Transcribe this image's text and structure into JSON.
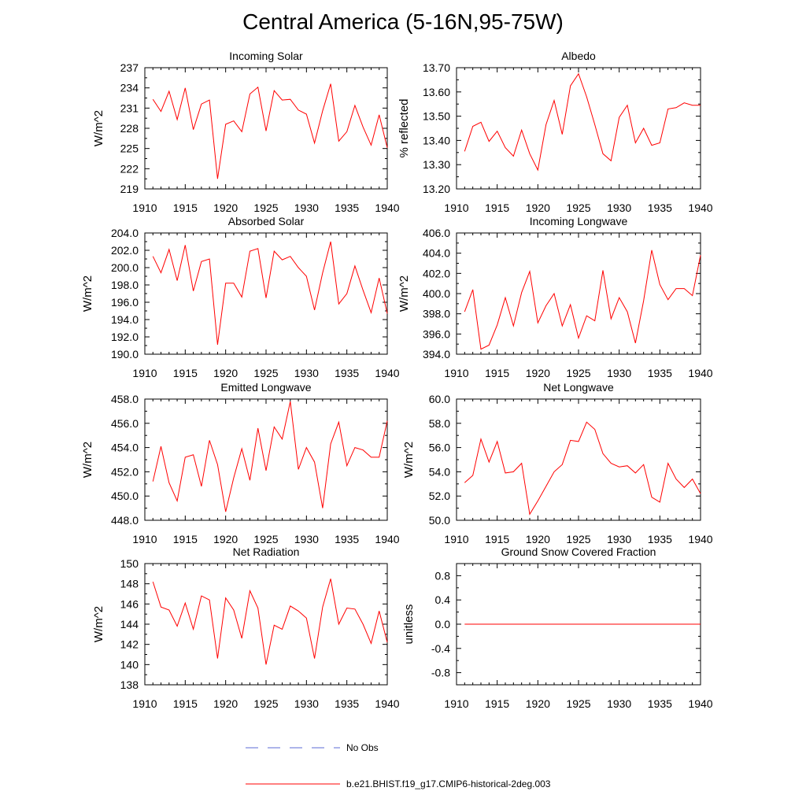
{
  "title": "Central America (5-16N,95-75W)",
  "colors": {
    "model": "#ff0000",
    "obs": "#5b6bd6",
    "axis": "#000000"
  },
  "legend": {
    "obs_label": "No Obs",
    "model_label": "b.e21.BHIST.f19_g17.CMIP6-historical-2deg.003"
  },
  "chart_data": [
    {
      "type": "line",
      "title": "Incoming Solar",
      "ylabel": "W/m^2",
      "x_ticks": [
        "1910",
        "1915",
        "1920",
        "1925",
        "1930",
        "1935",
        "1940"
      ],
      "xlim": [
        1910,
        1940
      ],
      "ylim": [
        219,
        237
      ],
      "y_ticks": [
        "219",
        "222",
        "225",
        "228",
        "231",
        "234",
        "237"
      ],
      "series": [
        {
          "values": [
            [
              1911,
              232.3
            ],
            [
              1912,
              230.5
            ],
            [
              1913,
              233.5
            ],
            [
              1914,
              229.3
            ],
            [
              1915,
              234.0
            ],
            [
              1916,
              227.8
            ],
            [
              1917,
              231.6
            ],
            [
              1918,
              232.2
            ],
            [
              1919,
              220.5
            ],
            [
              1920,
              228.6
            ],
            [
              1921,
              229.1
            ],
            [
              1922,
              227.5
            ],
            [
              1923,
              233.1
            ],
            [
              1924,
              234.1
            ],
            [
              1925,
              227.6
            ],
            [
              1926,
              233.6
            ],
            [
              1927,
              232.2
            ],
            [
              1928,
              232.3
            ],
            [
              1929,
              230.7
            ],
            [
              1930,
              230.1
            ],
            [
              1931,
              225.8
            ],
            [
              1932,
              230.6
            ],
            [
              1933,
              234.6
            ],
            [
              1934,
              226.1
            ],
            [
              1935,
              227.5
            ],
            [
              1936,
              231.4
            ],
            [
              1937,
              228.2
            ],
            [
              1938,
              225.5
            ],
            [
              1939,
              230.0
            ],
            [
              1940,
              225.1
            ]
          ]
        }
      ]
    },
    {
      "type": "line",
      "title": "Albedo",
      "ylabel": "% reflected",
      "x_ticks": [
        "1910",
        "1915",
        "1920",
        "1925",
        "1930",
        "1935",
        "1940"
      ],
      "xlim": [
        1910,
        1940
      ],
      "ylim": [
        13.2,
        13.7
      ],
      "y_ticks": [
        "13.20",
        "13.30",
        "13.40",
        "13.50",
        "13.60",
        "13.70"
      ],
      "series": [
        {
          "values": [
            [
              1911,
              13.355
            ],
            [
              1912,
              13.458
            ],
            [
              1913,
              13.475
            ],
            [
              1914,
              13.396
            ],
            [
              1915,
              13.438
            ],
            [
              1916,
              13.37
            ],
            [
              1917,
              13.335
            ],
            [
              1918,
              13.443
            ],
            [
              1919,
              13.345
            ],
            [
              1920,
              13.278
            ],
            [
              1921,
              13.465
            ],
            [
              1922,
              13.565
            ],
            [
              1923,
              13.425
            ],
            [
              1924,
              13.625
            ],
            [
              1925,
              13.675
            ],
            [
              1926,
              13.58
            ],
            [
              1927,
              13.465
            ],
            [
              1928,
              13.345
            ],
            [
              1929,
              13.316
            ],
            [
              1930,
              13.495
            ],
            [
              1931,
              13.545
            ],
            [
              1932,
              13.39
            ],
            [
              1933,
              13.45
            ],
            [
              1934,
              13.38
            ],
            [
              1935,
              13.39
            ],
            [
              1936,
              13.53
            ],
            [
              1937,
              13.535
            ],
            [
              1938,
              13.555
            ],
            [
              1939,
              13.545
            ],
            [
              1940,
              13.545
            ]
          ]
        }
      ]
    },
    {
      "type": "line",
      "title": "Absorbed Solar",
      "ylabel": "W/m^2",
      "x_ticks": [
        "1910",
        "1915",
        "1920",
        "1925",
        "1930",
        "1935",
        "1940"
      ],
      "xlim": [
        1910,
        1940
      ],
      "ylim": [
        190,
        204
      ],
      "y_ticks": [
        "190.0",
        "192.0",
        "194.0",
        "196.0",
        "198.0",
        "200.0",
        "202.0",
        "204.0"
      ],
      "series": [
        {
          "values": [
            [
              1911,
              201.3
            ],
            [
              1912,
              199.4
            ],
            [
              1913,
              202.1
            ],
            [
              1914,
              198.5
            ],
            [
              1915,
              202.6
            ],
            [
              1916,
              197.3
            ],
            [
              1917,
              200.7
            ],
            [
              1918,
              201.0
            ],
            [
              1919,
              191.1
            ],
            [
              1920,
              198.2
            ],
            [
              1921,
              198.2
            ],
            [
              1922,
              196.6
            ],
            [
              1923,
              201.9
            ],
            [
              1924,
              202.2
            ],
            [
              1925,
              196.5
            ],
            [
              1926,
              201.9
            ],
            [
              1927,
              200.9
            ],
            [
              1928,
              201.3
            ],
            [
              1929,
              200.0
            ],
            [
              1930,
              199.0
            ],
            [
              1931,
              195.1
            ],
            [
              1932,
              199.4
            ],
            [
              1933,
              203.0
            ],
            [
              1934,
              195.8
            ],
            [
              1935,
              197.0
            ],
            [
              1936,
              200.2
            ],
            [
              1937,
              197.4
            ],
            [
              1938,
              194.8
            ],
            [
              1939,
              198.8
            ],
            [
              1940,
              194.7
            ]
          ]
        }
      ]
    },
    {
      "type": "line",
      "title": "Incoming Longwave",
      "ylabel": "W/m^2",
      "x_ticks": [
        "1910",
        "1915",
        "1920",
        "1925",
        "1930",
        "1935",
        "1940"
      ],
      "xlim": [
        1910,
        1940
      ],
      "ylim": [
        394,
        406
      ],
      "y_ticks": [
        "394.0",
        "396.0",
        "398.0",
        "400.0",
        "402.0",
        "404.0",
        "406.0"
      ],
      "series": [
        {
          "values": [
            [
              1911,
              398.2
            ],
            [
              1912,
              400.4
            ],
            [
              1913,
              394.5
            ],
            [
              1914,
              394.9
            ],
            [
              1915,
              396.9
            ],
            [
              1916,
              399.6
            ],
            [
              1917,
              396.8
            ],
            [
              1918,
              400.1
            ],
            [
              1919,
              402.2
            ],
            [
              1920,
              397.1
            ],
            [
              1921,
              398.8
            ],
            [
              1922,
              400.0
            ],
            [
              1923,
              396.8
            ],
            [
              1924,
              398.9
            ],
            [
              1925,
              395.6
            ],
            [
              1926,
              397.8
            ],
            [
              1927,
              397.3
            ],
            [
              1928,
              402.3
            ],
            [
              1929,
              397.5
            ],
            [
              1930,
              399.6
            ],
            [
              1931,
              398.2
            ],
            [
              1932,
              395.1
            ],
            [
              1933,
              399.3
            ],
            [
              1934,
              404.3
            ],
            [
              1935,
              400.9
            ],
            [
              1936,
              399.4
            ],
            [
              1937,
              400.5
            ],
            [
              1938,
              400.5
            ],
            [
              1939,
              399.8
            ],
            [
              1940,
              403.8
            ]
          ]
        }
      ]
    },
    {
      "type": "line",
      "title": "Emitted Longwave",
      "ylabel": "W/m^2",
      "x_ticks": [
        "1910",
        "1915",
        "1920",
        "1925",
        "1930",
        "1935",
        "1940"
      ],
      "xlim": [
        1910,
        1940
      ],
      "ylim": [
        448,
        458
      ],
      "y_ticks": [
        "448.0",
        "450.0",
        "452.0",
        "454.0",
        "456.0",
        "458.0"
      ],
      "series": [
        {
          "values": [
            [
              1911,
              451.2
            ],
            [
              1912,
              454.1
            ],
            [
              1913,
              451.1
            ],
            [
              1914,
              449.6
            ],
            [
              1915,
              453.2
            ],
            [
              1916,
              453.4
            ],
            [
              1917,
              450.8
            ],
            [
              1918,
              454.6
            ],
            [
              1919,
              452.6
            ],
            [
              1920,
              448.7
            ],
            [
              1921,
              451.5
            ],
            [
              1922,
              453.9
            ],
            [
              1923,
              451.3
            ],
            [
              1924,
              455.6
            ],
            [
              1925,
              452.1
            ],
            [
              1926,
              455.7
            ],
            [
              1927,
              454.7
            ],
            [
              1928,
              457.8
            ],
            [
              1929,
              452.2
            ],
            [
              1930,
              454.0
            ],
            [
              1931,
              452.8
            ],
            [
              1932,
              449.0
            ],
            [
              1933,
              454.3
            ],
            [
              1934,
              456.1
            ],
            [
              1935,
              452.5
            ],
            [
              1936,
              454.0
            ],
            [
              1937,
              453.8
            ],
            [
              1938,
              453.2
            ],
            [
              1939,
              453.2
            ],
            [
              1940,
              456.2
            ]
          ]
        }
      ]
    },
    {
      "type": "line",
      "title": "Net Longwave",
      "ylabel": "W/m^2",
      "x_ticks": [
        "1910",
        "1915",
        "1920",
        "1925",
        "1930",
        "1935",
        "1940"
      ],
      "xlim": [
        1910,
        1940
      ],
      "ylim": [
        50,
        60
      ],
      "y_ticks": [
        "50.0",
        "52.0",
        "54.0",
        "56.0",
        "58.0",
        "60.0"
      ],
      "series": [
        {
          "values": [
            [
              1911,
              53.1
            ],
            [
              1912,
              53.7
            ],
            [
              1913,
              56.7
            ],
            [
              1914,
              54.8
            ],
            [
              1915,
              56.5
            ],
            [
              1916,
              53.9
            ],
            [
              1917,
              54.0
            ],
            [
              1918,
              54.7
            ],
            [
              1919,
              50.5
            ],
            [
              1920,
              51.6
            ],
            [
              1921,
              52.8
            ],
            [
              1922,
              54.0
            ],
            [
              1923,
              54.6
            ],
            [
              1924,
              56.6
            ],
            [
              1925,
              56.5
            ],
            [
              1926,
              58.1
            ],
            [
              1927,
              57.5
            ],
            [
              1928,
              55.5
            ],
            [
              1929,
              54.7
            ],
            [
              1930,
              54.4
            ],
            [
              1931,
              54.5
            ],
            [
              1932,
              53.9
            ],
            [
              1933,
              54.6
            ],
            [
              1934,
              51.9
            ],
            [
              1935,
              51.5
            ],
            [
              1936,
              54.7
            ],
            [
              1937,
              53.4
            ],
            [
              1938,
              52.7
            ],
            [
              1939,
              53.4
            ],
            [
              1940,
              52.2
            ]
          ]
        }
      ]
    },
    {
      "type": "line",
      "title": "Net Radiation",
      "ylabel": "W/m^2",
      "x_ticks": [
        "1910",
        "1915",
        "1920",
        "1925",
        "1930",
        "1935",
        "1940"
      ],
      "xlim": [
        1910,
        1940
      ],
      "ylim": [
        138,
        150
      ],
      "y_ticks": [
        "138",
        "140",
        "142",
        "144",
        "146",
        "148",
        "150"
      ],
      "series": [
        {
          "values": [
            [
              1911,
              148.2
            ],
            [
              1912,
              145.7
            ],
            [
              1913,
              145.4
            ],
            [
              1914,
              143.8
            ],
            [
              1915,
              146.1
            ],
            [
              1916,
              143.5
            ],
            [
              1917,
              146.8
            ],
            [
              1918,
              146.4
            ],
            [
              1919,
              140.6
            ],
            [
              1920,
              146.6
            ],
            [
              1921,
              145.4
            ],
            [
              1922,
              142.6
            ],
            [
              1923,
              147.3
            ],
            [
              1924,
              145.6
            ],
            [
              1925,
              140.0
            ],
            [
              1926,
              143.9
            ],
            [
              1927,
              143.5
            ],
            [
              1928,
              145.8
            ],
            [
              1929,
              145.3
            ],
            [
              1930,
              144.6
            ],
            [
              1931,
              140.6
            ],
            [
              1932,
              145.7
            ],
            [
              1933,
              148.5
            ],
            [
              1934,
              144.0
            ],
            [
              1935,
              145.6
            ],
            [
              1936,
              145.5
            ],
            [
              1937,
              144.0
            ],
            [
              1938,
              142.1
            ],
            [
              1939,
              145.3
            ],
            [
              1940,
              142.2
            ]
          ]
        }
      ]
    },
    {
      "type": "line",
      "title": "Ground Snow Covered Fraction",
      "ylabel": "unitless",
      "x_ticks": [
        "1910",
        "1915",
        "1920",
        "1925",
        "1930",
        "1935",
        "1940"
      ],
      "xlim": [
        1910,
        1940
      ],
      "ylim": [
        -1.0,
        1.0
      ],
      "y_ticks": [
        "-0.8",
        "-0.4",
        "0.0",
        "0.4",
        "0.8"
      ],
      "y_tick_values": [
        -0.8,
        -0.4,
        0.0,
        0.4,
        0.8
      ],
      "series": [
        {
          "values": [
            [
              1911,
              0.0
            ],
            [
              1940,
              0.0
            ]
          ]
        }
      ]
    }
  ]
}
